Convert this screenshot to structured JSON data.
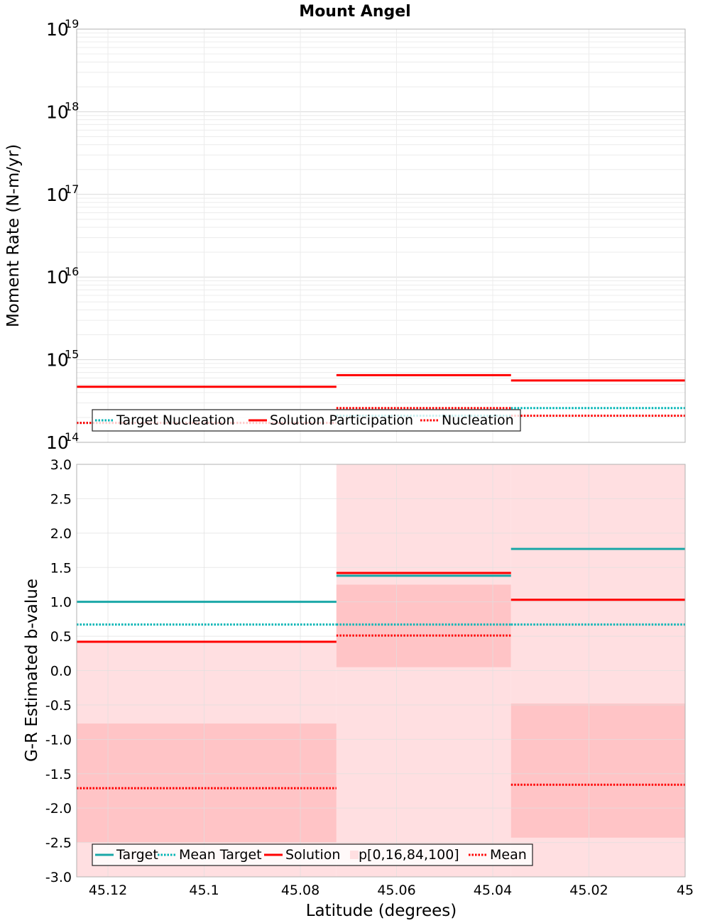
{
  "chart_data": [
    {
      "type": "line",
      "title": "Mount Angel",
      "xlabel": "",
      "ylabel": "Moment Rate (N-m/yr)",
      "yscale": "log",
      "ylim": [
        100000000000000.0,
        1e+19
      ],
      "xlim": [
        45.1265,
        45.0
      ],
      "x_reversed": true,
      "grid": true,
      "y_ticks": [
        {
          "base": "10",
          "exp": "14"
        },
        {
          "base": "10",
          "exp": "15"
        },
        {
          "base": "10",
          "exp": "16"
        },
        {
          "base": "10",
          "exp": "17"
        },
        {
          "base": "10",
          "exp": "18"
        },
        {
          "base": "10",
          "exp": "19"
        }
      ],
      "legend_position": "bottom-left",
      "legend": [
        "Target Nucleation",
        "Solution Participation",
        "Nucleation"
      ],
      "bins": [
        [
          45.1265,
          45.0725
        ],
        [
          45.0725,
          45.0362
        ],
        [
          45.0362,
          45.0
        ]
      ],
      "series": [
        {
          "name": "Target Nucleation",
          "color": "#00b5b5",
          "style": "dotted",
          "values": [
            172000000000000.0,
            210000000000000.0,
            260000000000000.0
          ]
        },
        {
          "name": "Solution Participation",
          "color": "#ff0000",
          "style": "solid",
          "values": [
            470000000000000.0,
            650000000000000.0,
            560000000000000.0
          ]
        },
        {
          "name": "Nucleation",
          "color": "#ff0000",
          "style": "dotted",
          "values": [
            172000000000000.0,
            260000000000000.0,
            210000000000000.0
          ]
        }
      ]
    },
    {
      "type": "line",
      "title": "",
      "xlabel": "Latitude (degrees)",
      "ylabel": "G-R Estimated b-value",
      "ylim": [
        -3.0,
        3.0
      ],
      "xlim": [
        45.1265,
        45.0
      ],
      "x_reversed": true,
      "grid": true,
      "y_ticks": [
        "3.0",
        "2.5",
        "2.0",
        "1.5",
        "1.0",
        "0.5",
        "0.0",
        "-0.5",
        "-1.0",
        "-1.5",
        "-2.0",
        "-2.5",
        "-3.0"
      ],
      "x_ticks": [
        "45.12",
        "45.1",
        "45.08",
        "45.06",
        "45.04",
        "45.02",
        "45"
      ],
      "legend_position": "bottom-left",
      "legend": [
        "Target",
        "Mean Target",
        "Solution",
        "p[0,16,84,100]",
        "Mean"
      ],
      "bins": [
        [
          45.1265,
          45.0725
        ],
        [
          45.0725,
          45.0362
        ],
        [
          45.0362,
          45.0
        ]
      ],
      "series": [
        {
          "name": "Target",
          "color": "#1aa7a7",
          "style": "solid",
          "values": [
            1.0,
            1.38,
            1.77
          ]
        },
        {
          "name": "Mean Target",
          "color": "#00b5b5",
          "style": "dotted",
          "values": [
            0.67,
            0.67,
            0.67
          ]
        },
        {
          "name": "Solution",
          "color": "#ff0000",
          "style": "solid",
          "values": [
            0.42,
            1.42,
            1.03
          ]
        },
        {
          "name": "Mean",
          "color": "#ff0000",
          "style": "dotted",
          "values": [
            -1.71,
            0.51,
            -1.66
          ]
        }
      ],
      "bands": {
        "name": "p[0,16,84,100]",
        "p0": [
          -3.0,
          -3.0,
          -3.0
        ],
        "p16": [
          -2.5,
          0.05,
          -2.43
        ],
        "p84": [
          -0.77,
          1.25,
          -0.48
        ],
        "p100": [
          0.42,
          3.0,
          3.0
        ],
        "outer_color": "#ffdfe1",
        "inner_color": "#ffc4c6"
      }
    }
  ]
}
